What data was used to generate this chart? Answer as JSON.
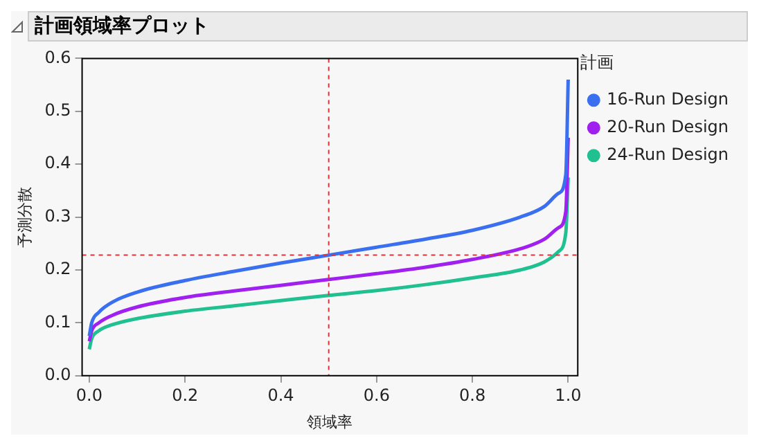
{
  "chart_data": {
    "type": "line",
    "title": "計画領域率プロット",
    "xlabel": "領域率",
    "ylabel": "予測分散",
    "legend_title": "計画",
    "legend": "right",
    "grid": false,
    "marker": "none",
    "line_style": "solid",
    "xlim": [
      -0.015,
      1.02
    ],
    "xticks": [
      {
        "value": 0,
        "label": "0.0"
      },
      0.2,
      0.4,
      0.6,
      0.8,
      {
        "value": 1,
        "label": "1.0"
      }
    ],
    "ylim": [
      0,
      0.6
    ],
    "yticks": [
      {
        "value": 0,
        "label": "0.0"
      },
      0.1,
      0.2,
      0.3,
      0.4,
      0.5,
      0.6
    ],
    "x": [
      0,
      0.005,
      0.02,
      0.05,
      0.1,
      0.2,
      0.3,
      0.4,
      0.5,
      0.6,
      0.7,
      0.8,
      0.9,
      0.95,
      0.98,
      0.995,
      1.0
    ],
    "series": [
      {
        "name": "16-Run Design",
        "color": "#3a6ff0",
        "values": [
          0.075,
          0.1,
          0.12,
          0.14,
          0.158,
          0.18,
          0.197,
          0.213,
          0.228,
          0.243,
          0.258,
          0.275,
          0.3,
          0.32,
          0.345,
          0.38,
          0.56
        ]
      },
      {
        "name": "20-Run Design",
        "color": "#a020f0",
        "values": [
          0.065,
          0.085,
          0.1,
          0.115,
          0.13,
          0.148,
          0.16,
          0.171,
          0.182,
          0.193,
          0.205,
          0.22,
          0.24,
          0.258,
          0.28,
          0.31,
          0.45
        ]
      },
      {
        "name": "24-Run Design",
        "color": "#20c090",
        "values": [
          0.05,
          0.07,
          0.085,
          0.097,
          0.108,
          0.122,
          0.132,
          0.142,
          0.152,
          0.161,
          0.172,
          0.185,
          0.2,
          0.215,
          0.235,
          0.27,
          0.375
        ]
      }
    ],
    "ref_lines": [
      {
        "axis": "x",
        "value": 0.5,
        "color": "#e0303a",
        "line_style": "dashed"
      },
      {
        "axis": "y",
        "value": 0.228,
        "color": "#e0303a",
        "line_style": "dashed"
      }
    ]
  }
}
